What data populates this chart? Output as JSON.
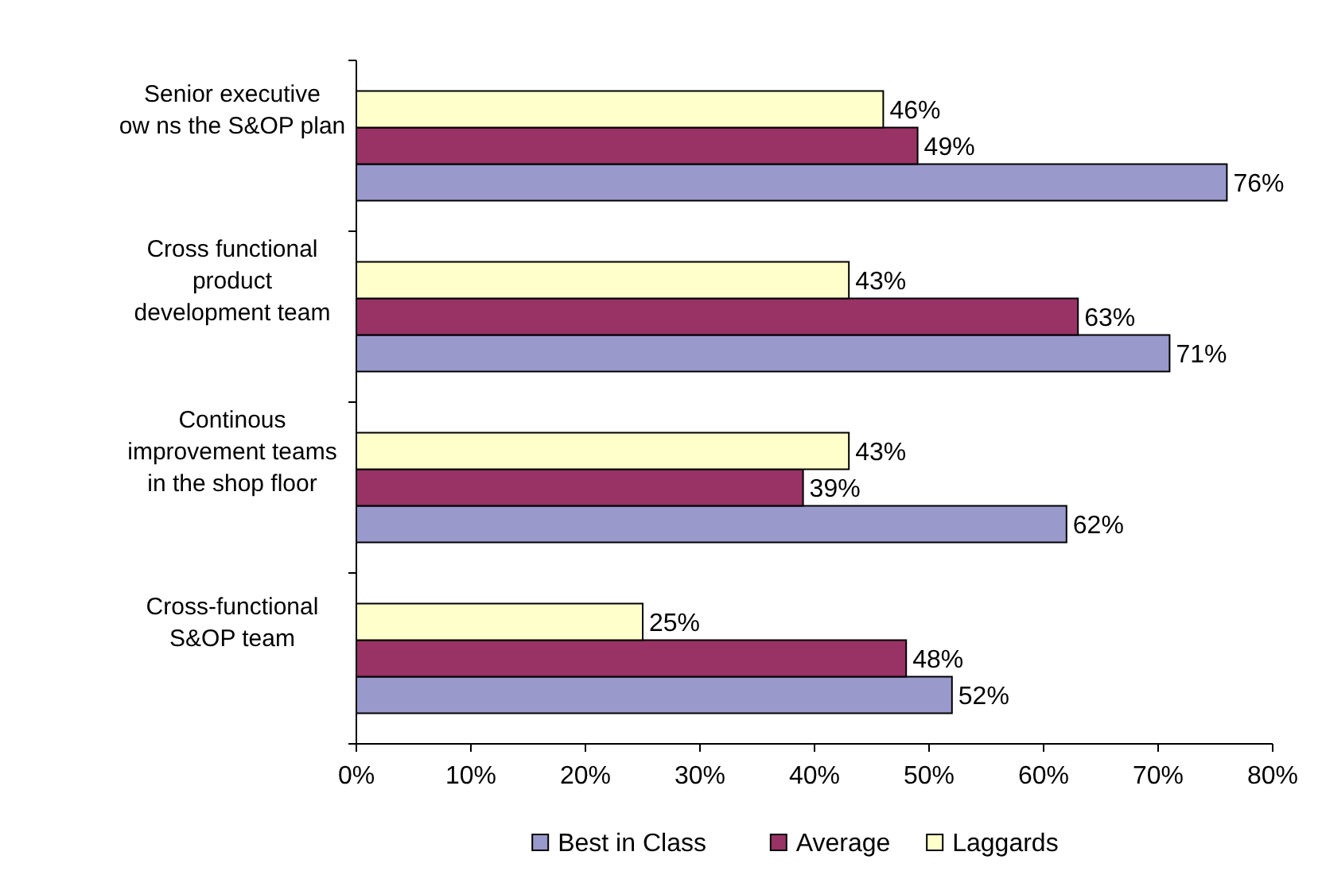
{
  "chart_data": {
    "type": "bar",
    "orientation": "horizontal",
    "categories": [
      "Senior executive\now ns the S&OP plan",
      "Cross functional\nproduct\ndevelopment team",
      "Continous\nimprovement teams\nin the shop floor",
      "Cross-functional\nS&OP team"
    ],
    "series": [
      {
        "name": "Best in Class",
        "color": "#9999cc",
        "values": [
          76,
          71,
          62,
          52
        ],
        "value_labels": [
          "76%",
          "71%",
          "62%",
          "52%"
        ]
      },
      {
        "name": "Average",
        "color": "#993366",
        "values": [
          49,
          63,
          39,
          48
        ],
        "value_labels": [
          "49%",
          "63%",
          "39%",
          "48%"
        ]
      },
      {
        "name": "Laggards",
        "color": "#ffffcc",
        "values": [
          46,
          43,
          43,
          25
        ],
        "value_labels": [
          "46%",
          "43%",
          "43%",
          "25%"
        ]
      }
    ],
    "xlim": [
      0,
      80
    ],
    "xticks": [
      {
        "value": 0,
        "label": "0%"
      },
      {
        "value": 10,
        "label": "10%"
      },
      {
        "value": 20,
        "label": "20%"
      },
      {
        "value": 30,
        "label": "30%"
      },
      {
        "value": 40,
        "label": "40%"
      },
      {
        "value": 50,
        "label": "50%"
      },
      {
        "value": 60,
        "label": "60%"
      },
      {
        "value": 70,
        "label": "70%"
      },
      {
        "value": 80,
        "label": "80%"
      }
    ],
    "grid": false,
    "legend": "bottom"
  }
}
